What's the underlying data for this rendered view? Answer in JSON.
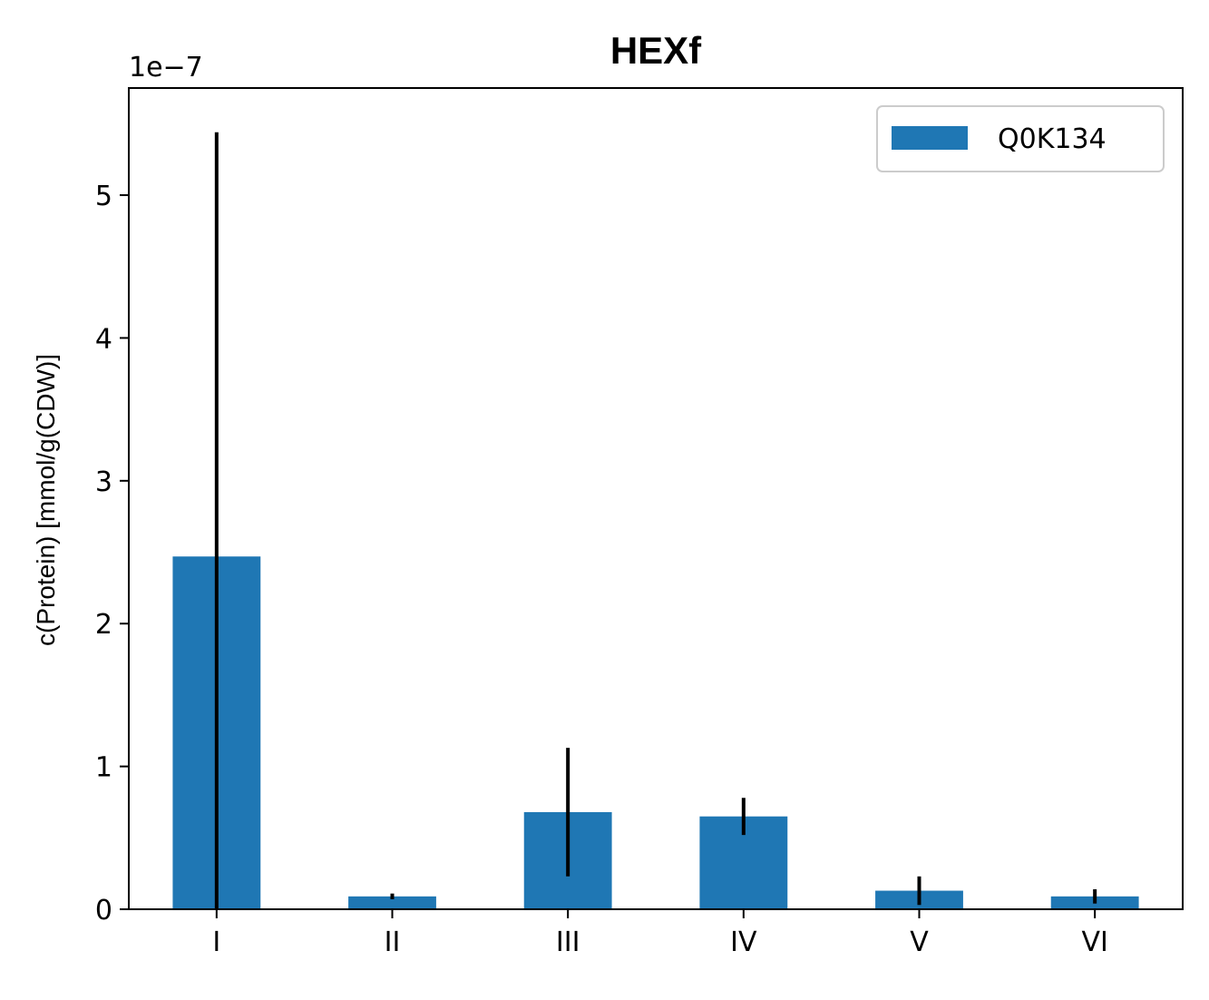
{
  "chart_data": {
    "type": "bar",
    "title": "HEXf",
    "xlabel": "",
    "ylabel": "c(Protein) [mmol/g(CDW)]",
    "y_offset_label": "1e−7",
    "y_scale": 1e-07,
    "categories": [
      "I",
      "II",
      "III",
      "IV",
      "V",
      "VI"
    ],
    "series": [
      {
        "name": "Q0K134",
        "color": "#1f77b4",
        "values": [
          2.47e-07,
          9e-09,
          6.8e-08,
          6.5e-08,
          1.3e-08,
          9e-09
        ],
        "error": [
          2.97e-07,
          2e-09,
          4.5e-08,
          1.3e-08,
          1e-08,
          5e-09
        ]
      }
    ],
    "ylim": [
      0,
      5.75e-07
    ],
    "yticks": [
      0,
      1,
      2,
      3,
      4,
      5
    ],
    "ytick_labels": [
      "0",
      "1",
      "2",
      "3",
      "4",
      "5"
    ],
    "grid": false,
    "legend_position": "upper right"
  }
}
